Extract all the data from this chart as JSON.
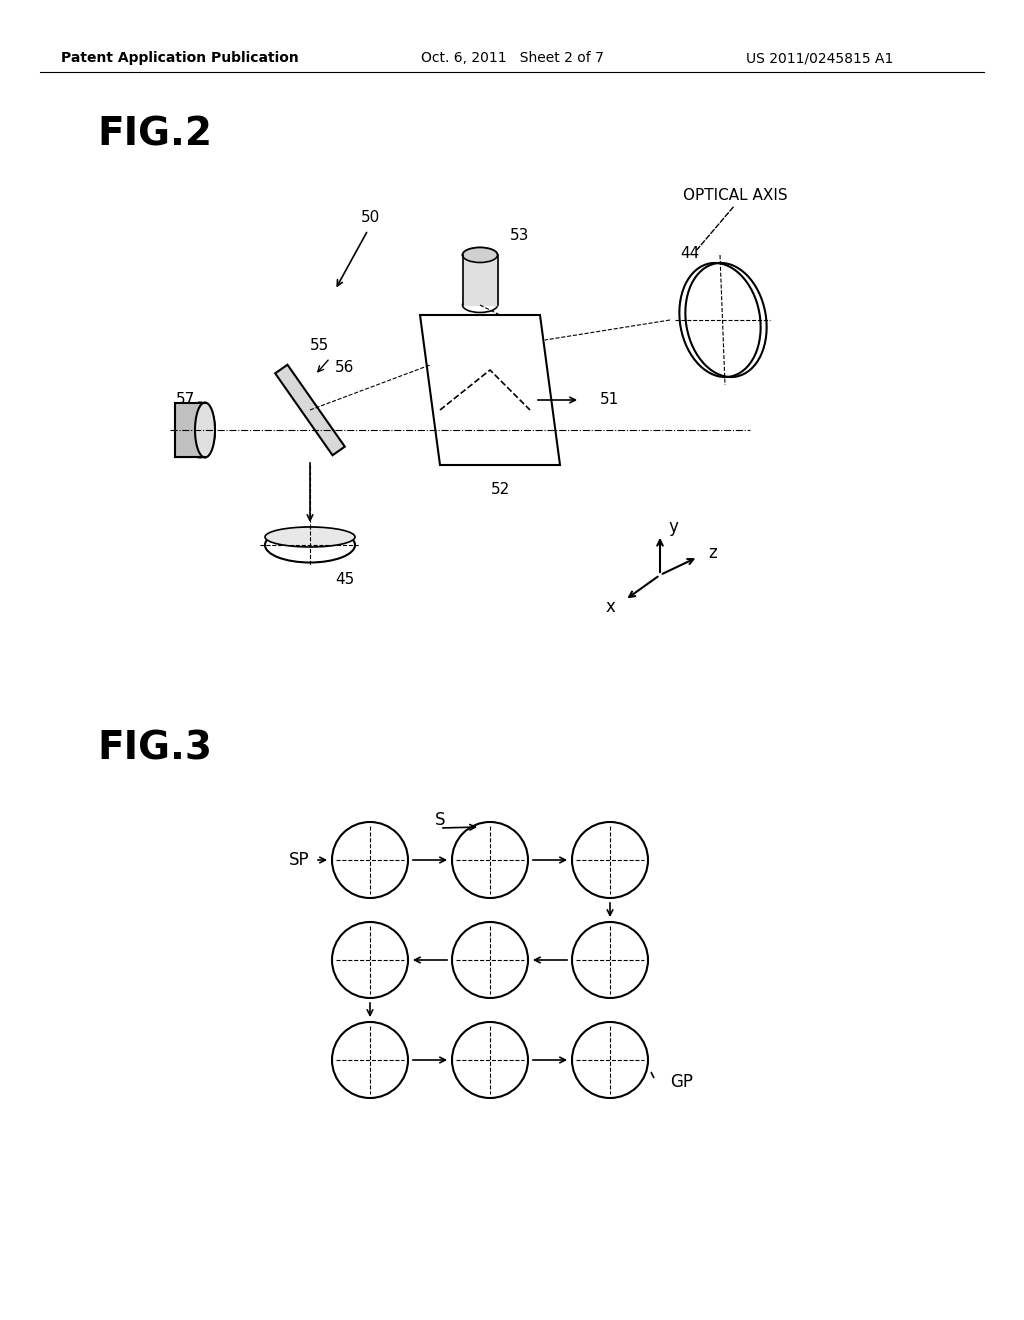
{
  "background_color": "#ffffff",
  "header_left": "Patent Application Publication",
  "header_center": "Oct. 6, 2011   Sheet 2 of 7",
  "header_right": "US 2011/0245815 A1",
  "fig2_label": "FIG.2",
  "fig3_label": "FIG.3",
  "text_color": "#000000"
}
